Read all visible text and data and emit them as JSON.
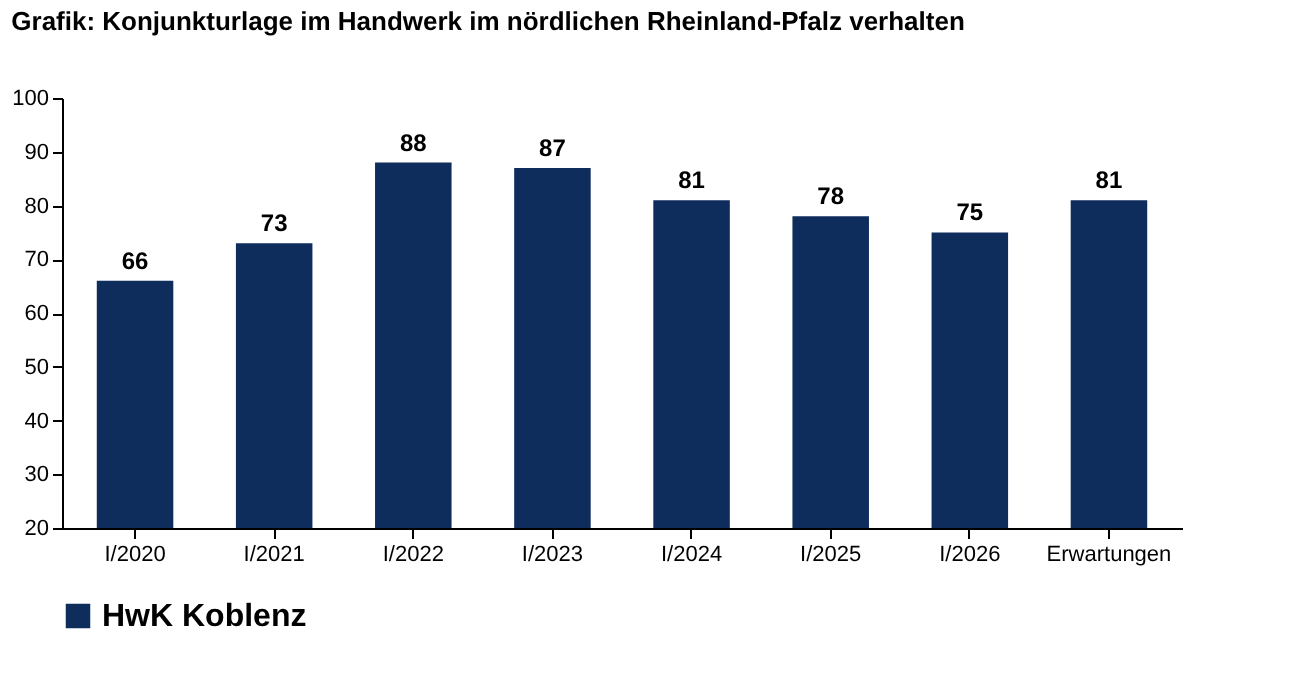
{
  "chart_data": {
    "type": "bar",
    "title": "Grafik: Konjunkturlage im Handwerk im nördlichen Rheinland-Pfalz verhalten",
    "categories": [
      "I/2020",
      "I/2021",
      "I/2022",
      "I/2023",
      "I/2024",
      "I/2025",
      "I/2026",
      "Erwartungen"
    ],
    "series": [
      {
        "name": "HwK Koblenz",
        "color": "#0f2d5c",
        "values": [
          66,
          73,
          88,
          87,
          81,
          78,
          75,
          81
        ]
      }
    ],
    "ylim": [
      20,
      100
    ],
    "yticks": [
      20,
      30,
      40,
      50,
      60,
      70,
      80,
      90,
      100
    ],
    "grid": false,
    "legend": "bottom",
    "data_labels": true
  }
}
